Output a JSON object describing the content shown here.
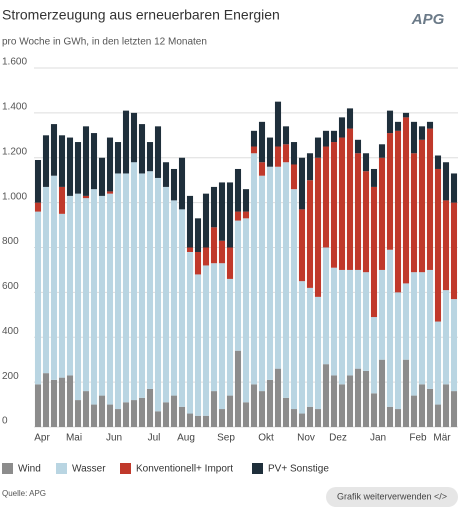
{
  "chart_data": {
    "type": "stacked_bar",
    "title": "Stromerzeugung aus erneuerbaren Energien",
    "subtitle": "pro Woche in GWh, in den letzten 12 Monaten",
    "logo": "APG",
    "source": "Quelle: APG",
    "button": "Grafik weiterverwenden </>",
    "categories": [
      "Apr",
      null,
      null,
      null,
      "Mai",
      null,
      null,
      null,
      null,
      "Jun",
      null,
      null,
      null,
      null,
      "Jul",
      null,
      null,
      null,
      "Aug",
      null,
      null,
      null,
      null,
      "Sep",
      null,
      null,
      null,
      null,
      "Okt",
      null,
      null,
      null,
      null,
      "Nov",
      null,
      null,
      null,
      "Dez",
      null,
      null,
      null,
      null,
      "Jan",
      null,
      null,
      null,
      null,
      "Feb",
      null,
      null,
      "Mär",
      null,
      null
    ],
    "series": [
      {
        "name": "Wind",
        "color": "#8c8c8c",
        "values": [
          190,
          240,
          210,
          220,
          230,
          120,
          160,
          100,
          140,
          100,
          80,
          110,
          120,
          130,
          170,
          70,
          110,
          140,
          90,
          60,
          50,
          50,
          160,
          80,
          140,
          340,
          110,
          190,
          160,
          210,
          260,
          130,
          80,
          60,
          90,
          80,
          280,
          230,
          190,
          230,
          260,
          250,
          150,
          300,
          90,
          80,
          300,
          140,
          190,
          170,
          100,
          190,
          160
        ]
      },
      {
        "name": "Wasser",
        "color": "#b9d5e2",
        "values": [
          770,
          830,
          910,
          730,
          800,
          920,
          860,
          960,
          890,
          940,
          1050,
          1020,
          1060,
          1000,
          970,
          1040,
          960,
          870,
          880,
          720,
          630,
          670,
          570,
          650,
          520,
          580,
          820,
          1030,
          960,
          950,
          900,
          1050,
          980,
          590,
          530,
          500,
          520,
          480,
          510,
          470,
          440,
          440,
          340,
          400,
          700,
          520,
          340,
          550,
          500,
          530,
          370,
          420,
          410
        ]
      },
      {
        "name": "Konventionell+ Import",
        "color": "#c0392b",
        "values": [
          40,
          0,
          0,
          120,
          0,
          0,
          10,
          0,
          0,
          10,
          0,
          0,
          0,
          0,
          0,
          0,
          0,
          0,
          0,
          20,
          100,
          80,
          160,
          100,
          140,
          40,
          30,
          30,
          60,
          0,
          90,
          80,
          110,
          320,
          480,
          620,
          450,
          560,
          590,
          630,
          520,
          450,
          580,
          500,
          520,
          720,
          740,
          530,
          590,
          630,
          680,
          400,
          430
        ]
      },
      {
        "name": "PV+ Sonstige",
        "color": "#1f2f3b",
        "values": [
          190,
          230,
          230,
          230,
          260,
          230,
          310,
          250,
          170,
          240,
          140,
          280,
          220,
          220,
          130,
          230,
          110,
          140,
          230,
          230,
          150,
          240,
          180,
          260,
          290,
          190,
          100,
          70,
          180,
          130,
          200,
          80,
          100,
          230,
          120,
          90,
          70,
          50,
          90,
          90,
          60,
          80,
          80,
          60,
          100,
          40,
          20,
          140,
          60,
          30,
          60,
          170,
          130
        ]
      }
    ],
    "ylim": [
      0,
      1600
    ],
    "yticks": [
      0,
      200,
      400,
      600,
      800,
      {
        "value": 1000,
        "label": "1.000"
      },
      {
        "value": 1200,
        "label": "1.200"
      },
      {
        "value": 1400,
        "label": "1.400"
      },
      {
        "value": 1600,
        "label": "1.600"
      }
    ],
    "grid": true
  }
}
